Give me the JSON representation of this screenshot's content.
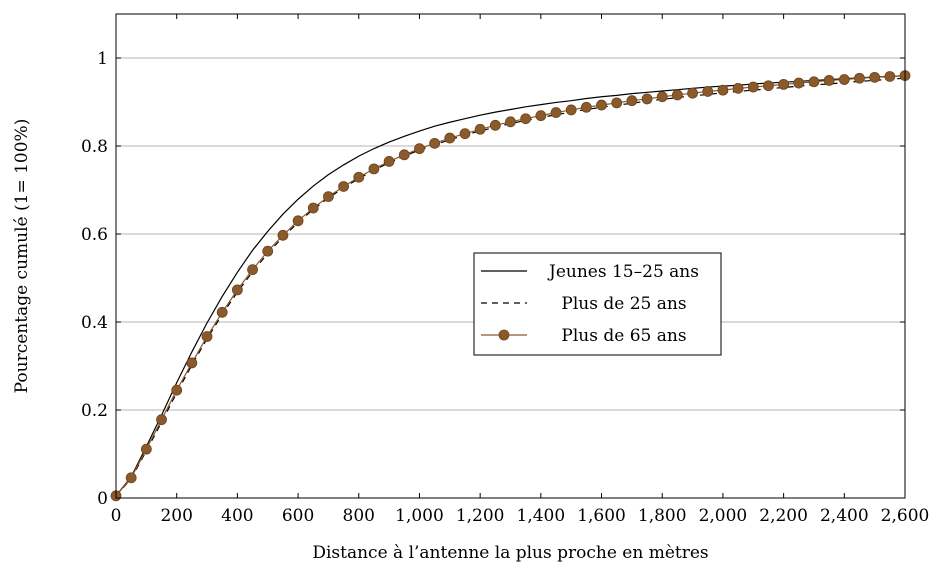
{
  "chart_data": {
    "type": "line",
    "title": "",
    "xlabel": "Distance à l’antenne la plus proche en mètres",
    "ylabel": "Pourcentage cumulé (1= 100%)",
    "xlim": [
      0,
      2600
    ],
    "ylim": [
      0,
      1.1
    ],
    "grid": "horizontal",
    "legend_position": "center-right",
    "x_ticks": [
      0,
      200,
      400,
      600,
      800,
      1000,
      1200,
      1400,
      1600,
      1800,
      2000,
      2200,
      2400,
      2600
    ],
    "x_tick_labels": [
      "0",
      "200",
      "400",
      "600",
      "800",
      "1,000",
      "1,200",
      "1,400",
      "1,600",
      "1,800",
      "2,000",
      "2,200",
      "2,400",
      "2,600"
    ],
    "y_ticks": [
      0,
      0.2,
      0.4,
      0.6,
      0.8,
      1
    ],
    "y_tick_labels": [
      "0",
      "0.2",
      "0.4",
      "0.6",
      "0.8",
      "1"
    ],
    "x": [
      0,
      50,
      100,
      150,
      200,
      250,
      300,
      350,
      400,
      450,
      500,
      550,
      600,
      650,
      700,
      750,
      800,
      850,
      900,
      950,
      1000,
      1050,
      1100,
      1150,
      1200,
      1250,
      1300,
      1350,
      1400,
      1450,
      1500,
      1550,
      1600,
      1650,
      1700,
      1750,
      1800,
      1850,
      1900,
      1950,
      2000,
      2050,
      2100,
      2150,
      2200,
      2250,
      2300,
      2350,
      2400,
      2450,
      2500,
      2550,
      2600
    ],
    "series": [
      {
        "name": "Jeunes 15–25 ans",
        "style": "solid",
        "color": "#000000",
        "values": [
          0.005,
          0.048,
          0.117,
          0.188,
          0.262,
          0.332,
          0.398,
          0.458,
          0.513,
          0.563,
          0.606,
          0.645,
          0.679,
          0.709,
          0.735,
          0.757,
          0.777,
          0.794,
          0.809,
          0.822,
          0.834,
          0.845,
          0.854,
          0.862,
          0.87,
          0.877,
          0.883,
          0.889,
          0.894,
          0.899,
          0.903,
          0.908,
          0.912,
          0.915,
          0.919,
          0.922,
          0.925,
          0.928,
          0.931,
          0.934,
          0.936,
          0.938,
          0.941,
          0.943,
          0.945,
          0.947,
          0.949,
          0.951,
          0.953,
          0.955,
          0.957,
          0.958,
          0.96
        ]
      },
      {
        "name": "Plus de 25 ans",
        "style": "dashed",
        "color": "#000000",
        "values": [
          0.005,
          0.044,
          0.107,
          0.172,
          0.239,
          0.302,
          0.362,
          0.417,
          0.468,
          0.514,
          0.556,
          0.593,
          0.626,
          0.656,
          0.682,
          0.705,
          0.726,
          0.745,
          0.762,
          0.777,
          0.791,
          0.803,
          0.814,
          0.825,
          0.834,
          0.843,
          0.851,
          0.858,
          0.865,
          0.871,
          0.877,
          0.883,
          0.888,
          0.893,
          0.897,
          0.902,
          0.906,
          0.91,
          0.914,
          0.917,
          0.921,
          0.924,
          0.927,
          0.93,
          0.933,
          0.936,
          0.939,
          0.941,
          0.944,
          0.947,
          0.949,
          0.952,
          0.954
        ]
      },
      {
        "name": "Plus de 65 ans",
        "style": "solid-markers",
        "color": "#8b5a2b",
        "values": [
          0.005,
          0.046,
          0.111,
          0.178,
          0.245,
          0.307,
          0.367,
          0.422,
          0.473,
          0.519,
          0.561,
          0.597,
          0.63,
          0.659,
          0.685,
          0.708,
          0.729,
          0.748,
          0.765,
          0.78,
          0.794,
          0.806,
          0.818,
          0.828,
          0.838,
          0.847,
          0.855,
          0.862,
          0.869,
          0.876,
          0.882,
          0.888,
          0.893,
          0.898,
          0.903,
          0.907,
          0.912,
          0.916,
          0.92,
          0.924,
          0.927,
          0.931,
          0.934,
          0.937,
          0.94,
          0.943,
          0.946,
          0.949,
          0.951,
          0.954,
          0.956,
          0.958,
          0.96
        ]
      }
    ]
  }
}
